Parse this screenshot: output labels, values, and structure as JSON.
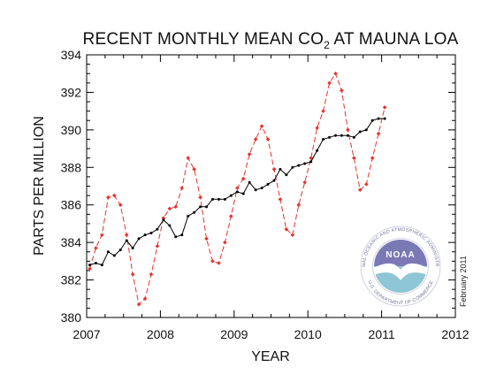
{
  "chart_data": {
    "type": "line",
    "title_main": "RECENT MONTHLY MEAN CO",
    "title_sub": "2",
    "title_tail": " AT MAUNA LOA",
    "xlabel": "YEAR",
    "ylabel": "PARTS PER MILLION",
    "xlim": [
      2007,
      2012
    ],
    "ylim": [
      380,
      394
    ],
    "xticks": [
      "2007",
      "2008",
      "2009",
      "2010",
      "2011",
      "2012"
    ],
    "yticks": [
      "380",
      "382",
      "384",
      "386",
      "388",
      "390",
      "392",
      "394"
    ],
    "note": "February 2011",
    "logo": {
      "name": "NOAA",
      "ring_text": "NATIONAL OCEANIC AND ATMOSPHERIC ADMINISTRATION",
      "bottom_text": "U.S. DEPARTMENT OF COMMERCE"
    },
    "colors": {
      "monthly": "#e8322b",
      "trend": "#000000",
      "logo_top": "#7a79b6",
      "logo_bottom": "#8fc6d6"
    },
    "series": [
      {
        "style": "dashed-red-diamonds",
        "x": [
          2007.042,
          2007.125,
          2007.208,
          2007.292,
          2007.375,
          2007.458,
          2007.542,
          2007.625,
          2007.708,
          2007.792,
          2007.875,
          2007.958,
          2008.042,
          2008.125,
          2008.208,
          2008.292,
          2008.375,
          2008.458,
          2008.542,
          2008.625,
          2008.708,
          2008.792,
          2008.875,
          2008.958,
          2009.042,
          2009.125,
          2009.208,
          2009.292,
          2009.375,
          2009.458,
          2009.542,
          2009.625,
          2009.708,
          2009.792,
          2009.875,
          2009.958,
          2010.042,
          2010.125,
          2010.208,
          2010.292,
          2010.375,
          2010.458,
          2010.542,
          2010.625,
          2010.708,
          2010.792,
          2010.875,
          2010.958,
          2011.042
        ],
        "values": [
          382.6,
          383.7,
          384.4,
          386.4,
          386.5,
          386.0,
          384.4,
          382.3,
          380.7,
          381.0,
          382.3,
          383.8,
          385.3,
          385.8,
          385.9,
          386.9,
          388.5,
          387.9,
          386.4,
          384.2,
          383.0,
          382.9,
          384.0,
          385.4,
          386.9,
          387.4,
          388.7,
          389.5,
          390.2,
          389.5,
          387.9,
          386.3,
          384.7,
          384.4,
          386.0,
          387.2,
          388.5,
          390.1,
          391.0,
          392.5,
          393.0,
          392.1,
          390.0,
          388.5,
          386.8,
          387.1,
          388.5,
          389.8,
          391.2
        ]
      },
      {
        "style": "solid-black-dots",
        "x": [
          2007.042,
          2007.125,
          2007.208,
          2007.292,
          2007.375,
          2007.458,
          2007.542,
          2007.625,
          2007.708,
          2007.792,
          2007.875,
          2007.958,
          2008.042,
          2008.125,
          2008.208,
          2008.292,
          2008.375,
          2008.458,
          2008.542,
          2008.625,
          2008.708,
          2008.792,
          2008.875,
          2008.958,
          2009.042,
          2009.125,
          2009.208,
          2009.292,
          2009.375,
          2009.458,
          2009.542,
          2009.625,
          2009.708,
          2009.792,
          2009.875,
          2009.958,
          2010.042,
          2010.125,
          2010.208,
          2010.292,
          2010.375,
          2010.458,
          2010.542,
          2010.625,
          2010.708,
          2010.792,
          2010.875,
          2010.958,
          2011.042
        ],
        "values": [
          382.8,
          382.9,
          382.8,
          383.5,
          383.3,
          383.6,
          384.1,
          383.7,
          384.2,
          384.4,
          384.5,
          384.7,
          385.2,
          384.9,
          384.3,
          384.4,
          385.4,
          385.6,
          385.9,
          385.9,
          386.3,
          386.3,
          386.3,
          386.5,
          386.7,
          386.6,
          387.2,
          386.8,
          386.9,
          387.1,
          387.3,
          387.9,
          387.6,
          388.0,
          388.1,
          388.2,
          388.3,
          388.9,
          389.5,
          389.6,
          389.7,
          389.7,
          389.7,
          389.6,
          389.9,
          390.0,
          390.5,
          390.6,
          390.6
        ]
      }
    ]
  }
}
